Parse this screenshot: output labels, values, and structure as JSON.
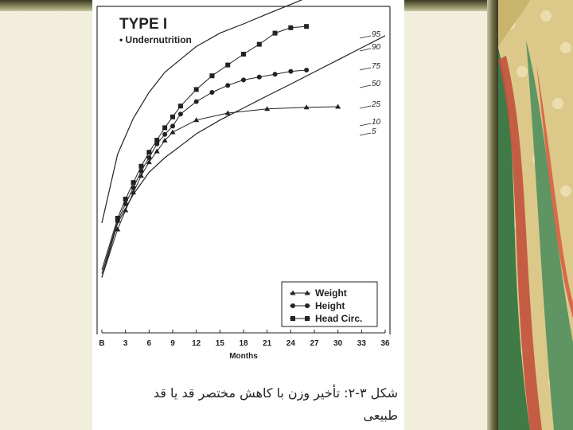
{
  "colors": {
    "frame_dark": "#3a3a24",
    "slide_background": "#f1efdc",
    "ink": "#222222",
    "decor_green": "#4f8a52",
    "decor_red": "#c2513c",
    "decor_gold": "#d9c27a"
  },
  "caption": {
    "line1": "شکل ۳-۲: تأخیر وزن با کاهش مختصر قد یا قد",
    "line2": "طبیعی"
  },
  "chart_data": {
    "type": "line",
    "title": "TYPE I",
    "subtitle": "• Undernutrition",
    "xlabel": "Months",
    "ylabel": "",
    "grid": false,
    "legend_position": "bottom-right",
    "x_ticks": [
      "B",
      "3",
      "6",
      "9",
      "12",
      "15",
      "18",
      "21",
      "24",
      "27",
      "30",
      "33",
      "36"
    ],
    "xlim": [
      0,
      36
    ],
    "ylim": [
      0,
      100
    ],
    "percentile_labels": [
      "95",
      "90",
      "75",
      "50",
      "25",
      "10",
      "5"
    ],
    "reference_curves": [
      {
        "label": "95",
        "x": [
          0,
          2,
          4,
          6,
          8,
          10,
          12,
          15,
          18,
          21,
          24,
          27,
          30,
          33,
          36
        ],
        "y": [
          30.0,
          51.6,
          62.9,
          71.0,
          77.3,
          81.4,
          85.4,
          89.6,
          92.5,
          95.6,
          98.6,
          101.7,
          104.8,
          107.9,
          111.0
        ]
      },
      {
        "label": "5",
        "x": [
          0,
          2,
          4,
          6,
          8,
          10,
          12,
          15,
          18,
          21,
          24,
          27,
          30,
          33,
          36
        ],
        "y": [
          12.9,
          30.0,
          39.0,
          45.9,
          50.5,
          54.2,
          58.0,
          62.3,
          66.1,
          69.9,
          73.6,
          77.4,
          81.2,
          85.0,
          88.8
        ]
      }
    ],
    "series": [
      {
        "name": "Weight",
        "marker": "triangle",
        "x": [
          2,
          3,
          4,
          5,
          6,
          7,
          8,
          9,
          12,
          16,
          21,
          26,
          30
        ],
        "y": [
          28.0,
          34.0,
          39.6,
          44.8,
          49.1,
          52.5,
          55.9,
          58.5,
          62.3,
          64.5,
          65.8,
          66.3,
          66.5
        ]
      },
      {
        "name": "Height",
        "marker": "circle",
        "x": [
          2,
          3,
          4,
          5,
          6,
          7,
          8,
          9,
          10,
          12,
          14,
          16,
          18,
          20,
          22,
          24,
          26
        ],
        "y": [
          30.6,
          36.0,
          41.1,
          46.3,
          50.5,
          54.8,
          57.8,
          60.4,
          64.2,
          68.1,
          71.0,
          73.2,
          74.9,
          75.8,
          76.7,
          77.6,
          78.0
        ]
      },
      {
        "name": "Head Circ.",
        "marker": "square",
        "x": [
          2,
          3,
          4,
          5,
          6,
          7,
          8,
          9,
          10,
          12,
          14,
          16,
          18,
          20,
          22,
          24,
          26
        ],
        "y": [
          31.5,
          37.5,
          42.7,
          47.8,
          52.2,
          56.0,
          59.9,
          63.3,
          66.7,
          71.9,
          76.2,
          79.6,
          83.0,
          86.1,
          89.6,
          91.3,
          91.7
        ]
      }
    ]
  }
}
